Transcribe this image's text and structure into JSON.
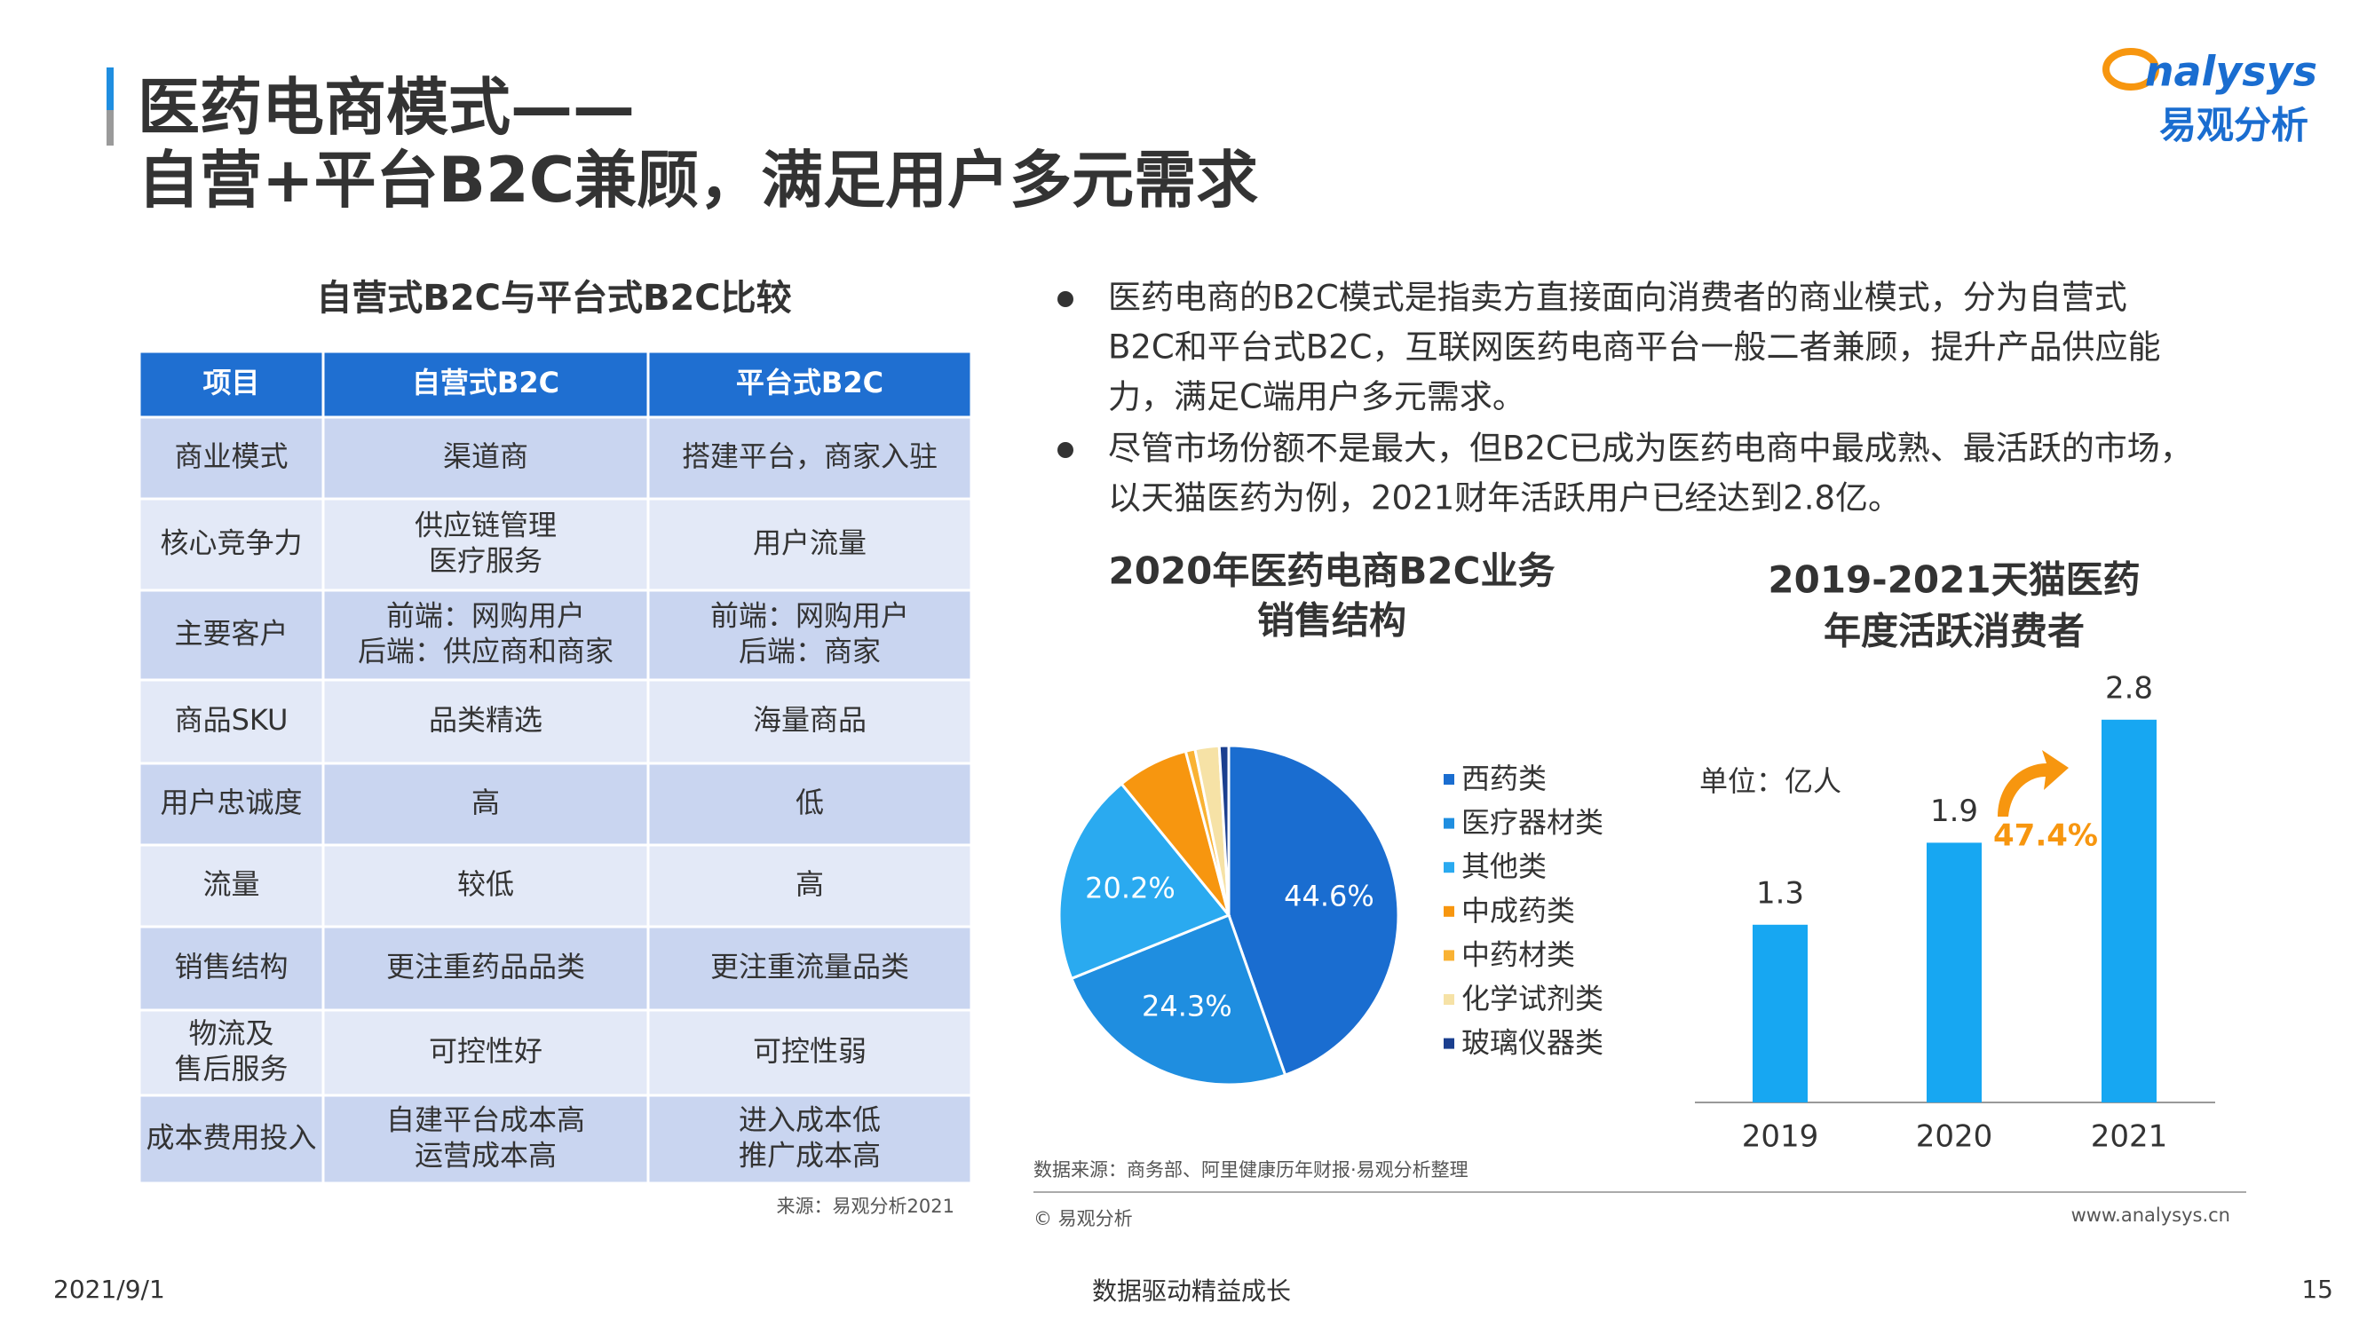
{
  "header": {
    "title": [
      "医药电商模式——",
      "自营+平台B2C兼顾，满足用户多元需求"
    ],
    "logo": {
      "brand": "nalysys",
      "cn": "易观分析"
    }
  },
  "table": {
    "title": "自营式B2C与平台式B2C比较",
    "headers": [
      "项目",
      "自营式B2C",
      "平台式B2C"
    ],
    "rows": [
      [
        [
          "商业模式"
        ],
        [
          "渠道商"
        ],
        [
          "搭建平台，商家入驻"
        ]
      ],
      [
        [
          "核心竞争力"
        ],
        [
          "供应链管理",
          "医疗服务"
        ],
        [
          "用户流量"
        ]
      ],
      [
        [
          "主要客户"
        ],
        [
          "前端：网购用户",
          "后端：供应商和商家"
        ],
        [
          "前端：网购用户",
          "后端：商家"
        ]
      ],
      [
        [
          "商品SKU"
        ],
        [
          "品类精选"
        ],
        [
          "海量商品"
        ]
      ],
      [
        [
          "用户忠诚度"
        ],
        [
          "高"
        ],
        [
          "低"
        ]
      ],
      [
        [
          "流量"
        ],
        [
          "较低"
        ],
        [
          "高"
        ]
      ],
      [
        [
          "销售结构"
        ],
        [
          "更注重药品品类"
        ],
        [
          "更注重流量品类"
        ]
      ],
      [
        [
          "物流及",
          "售后服务"
        ],
        [
          "可控性好"
        ],
        [
          "可控性弱"
        ]
      ],
      [
        [
          "成本费用投入"
        ],
        [
          "自建平台成本高",
          "运营成本高"
        ],
        [
          "进入成本低",
          "推广成本高"
        ]
      ]
    ],
    "source": "来源：易观分析2021"
  },
  "bullets": [
    [
      "医药电商的B2C模式是指卖方直接面向消费者的商业模式，分为自营式",
      "B2C和平台式B2C，互联网医药电商平台一般二者兼顾，提升产品供应能",
      "力，满足C端用户多元需求。"
    ],
    [
      "尽管市场份额不是最大，但B2C已成为医药电商中最成熟、最活跃的市场，",
      "以天猫医药为例，2021财年活跃用户已经达到2.8亿。"
    ]
  ],
  "chart_data": [
    {
      "type": "pie",
      "title": [
        "2020年医药电商B2C业务",
        "销售结构"
      ],
      "categories": [
        "西药类",
        "医疗器材类",
        "其他类",
        "中成药类",
        "中药材类",
        "化学试剂类",
        "玻璃仪器类"
      ],
      "values": [
        44.6,
        24.3,
        20.2,
        6.8,
        0.9,
        2.3,
        0.9
      ],
      "value_labels": [
        "44.6%",
        "24.3%",
        "20.2%",
        null,
        null,
        null,
        null
      ],
      "colors": [
        "#1a6dd0",
        "#1f8ee0",
        "#2aaaf0",
        "#f7960f",
        "#f9b233",
        "#f6e2a6",
        "#1b3f8f"
      ]
    },
    {
      "type": "bar",
      "title": [
        "2019-2021天猫医药",
        "年度活跃消费者"
      ],
      "unit": "单位：亿人",
      "categories": [
        "2019",
        "2020",
        "2021"
      ],
      "values": [
        1.3,
        1.9,
        2.8
      ],
      "color": "#17a7f2",
      "annotation": "47.4%"
    }
  ],
  "sources": {
    "data": "数据来源：商务部、阿里健康历年财报·易观分析整理",
    "copyright": "© 易观分析",
    "url": "www.analysys.cn"
  },
  "footer": {
    "date": "2021/9/1",
    "slogan": "数据驱动精益成长",
    "page": "15"
  }
}
